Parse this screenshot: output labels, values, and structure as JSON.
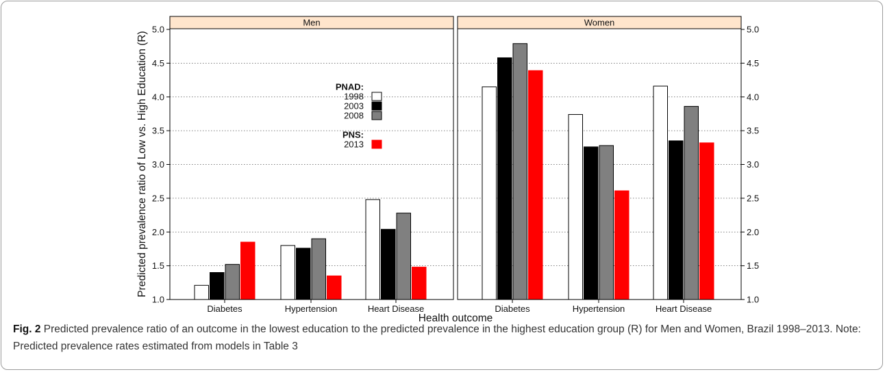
{
  "caption": {
    "label": "Fig. 2",
    "text": " Predicted prevalence ratio of an outcome in the lowest education to the predicted prevalence in the highest education group (R) for Men and Women, Brazil 1998–2013. Note: Predicted prevalence rates estimated from models in Table 3"
  },
  "chart_data": {
    "type": "bar",
    "ylabel": "Predicted prevalence ratio of Low vs. High Education (R)",
    "xlabel": "Health outcome",
    "ylim": [
      1.0,
      5.0
    ],
    "yticks": [
      "1.0",
      "1.5",
      "2.0",
      "2.5",
      "3.0",
      "3.5",
      "4.0",
      "4.5",
      "5.0"
    ],
    "grid": "horizontal dotted",
    "categories": [
      "Diabetes",
      "Hypertension",
      "Heart Disease"
    ],
    "legend": {
      "placement": "inside Men panel, top-center",
      "groups": [
        {
          "title": "PNAD:",
          "entries": [
            {
              "label": "1998",
              "series_index": 0
            },
            {
              "label": "2003",
              "series_index": 1
            },
            {
              "label": "2008",
              "series_index": 2
            }
          ]
        },
        {
          "title": "PNS:",
          "entries": [
            {
              "label": "2013",
              "series_index": 3
            }
          ]
        }
      ]
    },
    "series_styles": [
      {
        "label": "1998",
        "fill": "#ffffff",
        "stroke": "#000000"
      },
      {
        "label": "2003",
        "fill": "#000000",
        "stroke": "#000000"
      },
      {
        "label": "2008",
        "fill": "#808080",
        "stroke": "#000000"
      },
      {
        "label": "2013",
        "fill": "#ff0000",
        "stroke": "#ff0000"
      }
    ],
    "panels": [
      {
        "strip": "Men",
        "strip_color": "#ffe5cc",
        "series": [
          {
            "name": "1998",
            "values": [
              1.21,
              1.8,
              2.48
            ]
          },
          {
            "name": "2003",
            "values": [
              1.4,
              1.76,
              2.04
            ]
          },
          {
            "name": "2008",
            "values": [
              1.52,
              1.9,
              2.28
            ]
          },
          {
            "name": "2013",
            "values": [
              1.85,
              1.35,
              1.48
            ]
          }
        ]
      },
      {
        "strip": "Women",
        "strip_color": "#ffe5cc",
        "series": [
          {
            "name": "1998",
            "values": [
              4.15,
              3.74,
              4.16
            ]
          },
          {
            "name": "2003",
            "values": [
              4.58,
              3.26,
              3.35
            ]
          },
          {
            "name": "2008",
            "values": [
              4.79,
              3.28,
              3.86
            ]
          },
          {
            "name": "2013",
            "values": [
              4.39,
              2.61,
              3.32
            ]
          }
        ]
      }
    ]
  }
}
